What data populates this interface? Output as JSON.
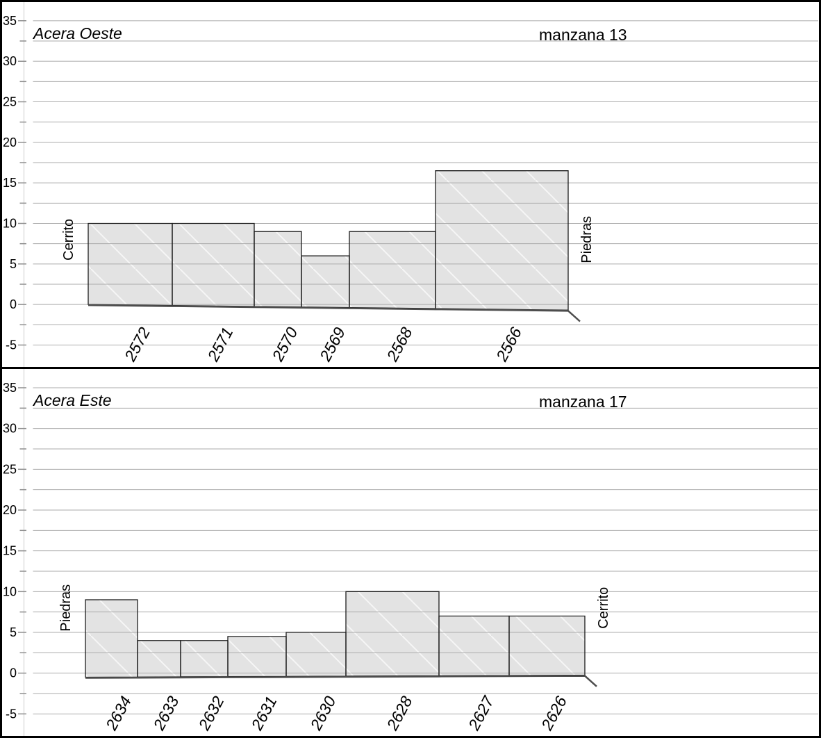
{
  "palette": {
    "background": "#ffffff",
    "frame": "#000000",
    "grid_line": "#ababab",
    "axis_line": "#cccccc",
    "tick": "#8f8f8f",
    "bar_fill": "#e3e3e3",
    "bar_hatch": "#f6f6f6",
    "bar_stroke": "#1c1c1c",
    "ground_line": "#4d4d4d",
    "text": "#000000"
  },
  "y_axis": {
    "min": -5,
    "max": 35,
    "major_step": 5,
    "minor_step": 2.5,
    "major_labels": [
      "35",
      "30",
      "25",
      "20",
      "15",
      "10",
      "5",
      "0",
      "-5"
    ]
  },
  "chart_data": [
    {
      "type": "bar",
      "title": "Acera Oeste",
      "block_label": "manzana 13",
      "street_left": "Cerrito",
      "street_right": "Piedras",
      "categories": [
        "2572",
        "2571",
        "2570",
        "2569",
        "2568",
        "2566"
      ],
      "values": [
        10,
        10,
        9,
        6,
        9,
        16.5
      ],
      "x_edges": [
        124,
        245,
        363,
        431,
        500,
        624,
        815
      ],
      "baseline": {
        "start": 0,
        "end": -0.7
      },
      "ylim": [
        -5,
        35
      ],
      "grid": "on",
      "legend": "none"
    },
    {
      "type": "bar",
      "title": "Acera Este",
      "block_label": "manzana 17",
      "street_left": "Piedras",
      "street_right": "Cerrito",
      "categories": [
        "2634",
        "2633",
        "2632",
        "2631",
        "2630",
        "2628",
        "2627",
        "2626"
      ],
      "values": [
        9,
        4,
        4,
        4.5,
        5,
        10,
        7,
        7
      ],
      "x_edges": [
        120,
        195,
        257,
        325,
        409,
        495,
        629,
        730,
        839
      ],
      "baseline": {
        "start": -0.5,
        "end": -0.25
      },
      "ylim": [
        -5,
        35
      ],
      "grid": "on",
      "legend": "none"
    }
  ]
}
